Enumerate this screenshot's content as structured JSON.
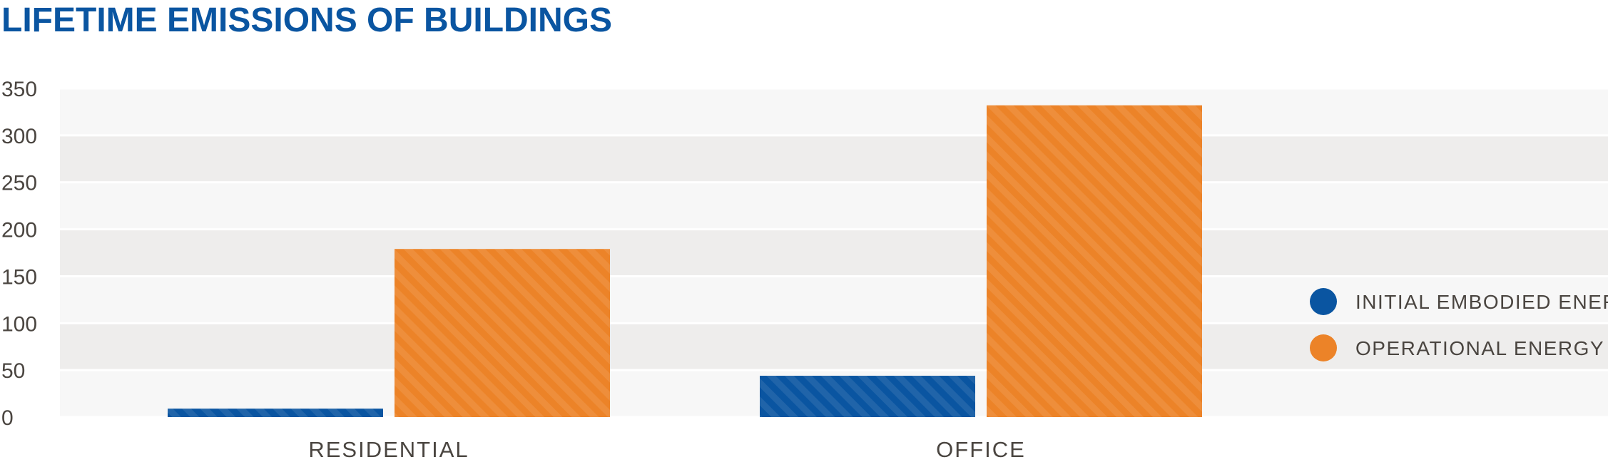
{
  "colors": {
    "title": "#0a55a1",
    "blue": "#0a55a1",
    "orange": "#ec8328",
    "text": "#4a4540",
    "band_light": "#f7f7f7",
    "band_dark": "#eeedec"
  },
  "chart_data": {
    "type": "bar",
    "title": "LIFETIME EMISSIONS OF BUILDINGS",
    "xlabel": "",
    "ylabel": "",
    "categories": [
      "RESIDENTIAL",
      "OFFICE"
    ],
    "series": [
      {
        "name": "INITIAL EMBODIED ENERGY",
        "color": "#0a55a1",
        "values": [
          9,
          44
        ]
      },
      {
        "name": "OPERATIONAL ENERGY",
        "color": "#ec8328",
        "values": [
          179,
          332
        ]
      }
    ],
    "ylim": [
      0,
      350
    ],
    "yticks": [
      0,
      50,
      100,
      150,
      200,
      250,
      300,
      350
    ],
    "grid": "alternating horizontal bands",
    "legend_position": "right"
  }
}
